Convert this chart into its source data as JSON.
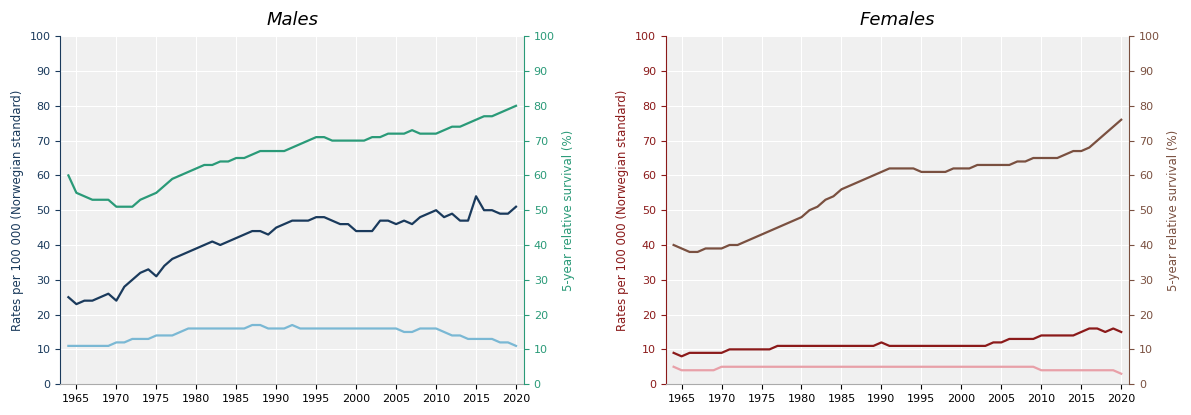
{
  "males": {
    "title": "Males",
    "years": [
      1964,
      1965,
      1966,
      1967,
      1968,
      1969,
      1970,
      1971,
      1972,
      1973,
      1974,
      1975,
      1976,
      1977,
      1978,
      1979,
      1980,
      1981,
      1982,
      1983,
      1984,
      1985,
      1986,
      1987,
      1988,
      1989,
      1990,
      1991,
      1992,
      1993,
      1994,
      1995,
      1996,
      1997,
      1998,
      1999,
      2000,
      2001,
      2002,
      2003,
      2004,
      2005,
      2006,
      2007,
      2008,
      2009,
      2010,
      2011,
      2012,
      2013,
      2014,
      2015,
      2016,
      2017,
      2018,
      2019,
      2020
    ],
    "incidence": [
      25,
      23,
      24,
      24,
      25,
      26,
      24,
      28,
      30,
      32,
      33,
      31,
      34,
      36,
      37,
      38,
      39,
      40,
      41,
      40,
      41,
      42,
      43,
      44,
      44,
      43,
      45,
      46,
      47,
      47,
      47,
      48,
      48,
      47,
      46,
      46,
      44,
      44,
      44,
      47,
      47,
      46,
      47,
      46,
      48,
      49,
      50,
      48,
      49,
      47,
      47,
      54,
      50,
      50,
      49,
      49,
      51
    ],
    "mortality": [
      11,
      11,
      11,
      11,
      11,
      11,
      12,
      12,
      13,
      13,
      13,
      14,
      14,
      14,
      15,
      16,
      16,
      16,
      16,
      16,
      16,
      16,
      16,
      17,
      17,
      16,
      16,
      16,
      17,
      16,
      16,
      16,
      16,
      16,
      16,
      16,
      16,
      16,
      16,
      16,
      16,
      16,
      15,
      15,
      16,
      16,
      16,
      15,
      14,
      14,
      13,
      13,
      13,
      13,
      12,
      12,
      11
    ],
    "survival": [
      60,
      55,
      54,
      53,
      53,
      53,
      51,
      51,
      51,
      53,
      54,
      55,
      57,
      59,
      60,
      61,
      62,
      63,
      63,
      64,
      64,
      65,
      65,
      66,
      67,
      67,
      67,
      67,
      68,
      69,
      70,
      71,
      71,
      70,
      70,
      70,
      70,
      70,
      71,
      71,
      72,
      72,
      72,
      73,
      72,
      72,
      72,
      73,
      74,
      74,
      75,
      76,
      77,
      77,
      78,
      79,
      80
    ],
    "incidence_color": "#1a3a5c",
    "mortality_color": "#7ab8d4",
    "survival_color": "#2a9a78",
    "left_ylabel": "Rates per 100 000 (Norwegian standard)",
    "right_ylabel": "5-year relative survival (%)",
    "ylim": [
      0,
      100
    ],
    "right_tick_color": "#2a9a78",
    "left_tick_color": "#1a3a5c"
  },
  "females": {
    "title": "Females",
    "years": [
      1964,
      1965,
      1966,
      1967,
      1968,
      1969,
      1970,
      1971,
      1972,
      1973,
      1974,
      1975,
      1976,
      1977,
      1978,
      1979,
      1980,
      1981,
      1982,
      1983,
      1984,
      1985,
      1986,
      1987,
      1988,
      1989,
      1990,
      1991,
      1992,
      1993,
      1994,
      1995,
      1996,
      1997,
      1998,
      1999,
      2000,
      2001,
      2002,
      2003,
      2004,
      2005,
      2006,
      2007,
      2008,
      2009,
      2010,
      2011,
      2012,
      2013,
      2014,
      2015,
      2016,
      2017,
      2018,
      2019,
      2020
    ],
    "incidence": [
      9,
      8,
      9,
      9,
      9,
      9,
      9,
      10,
      10,
      10,
      10,
      10,
      10,
      11,
      11,
      11,
      11,
      11,
      11,
      11,
      11,
      11,
      11,
      11,
      11,
      11,
      12,
      11,
      11,
      11,
      11,
      11,
      11,
      11,
      11,
      11,
      11,
      11,
      11,
      11,
      12,
      12,
      13,
      13,
      13,
      13,
      14,
      14,
      14,
      14,
      14,
      15,
      16,
      16,
      15,
      16,
      15
    ],
    "mortality": [
      5,
      4,
      4,
      4,
      4,
      4,
      5,
      5,
      5,
      5,
      5,
      5,
      5,
      5,
      5,
      5,
      5,
      5,
      5,
      5,
      5,
      5,
      5,
      5,
      5,
      5,
      5,
      5,
      5,
      5,
      5,
      5,
      5,
      5,
      5,
      5,
      5,
      5,
      5,
      5,
      5,
      5,
      5,
      5,
      5,
      5,
      4,
      4,
      4,
      4,
      4,
      4,
      4,
      4,
      4,
      4,
      3
    ],
    "survival": [
      40,
      39,
      38,
      38,
      39,
      39,
      39,
      40,
      40,
      41,
      42,
      43,
      44,
      45,
      46,
      47,
      48,
      50,
      51,
      53,
      54,
      56,
      57,
      58,
      59,
      60,
      61,
      62,
      62,
      62,
      62,
      61,
      61,
      61,
      61,
      62,
      62,
      62,
      63,
      63,
      63,
      63,
      63,
      64,
      64,
      65,
      65,
      65,
      65,
      66,
      67,
      67,
      68,
      70,
      72,
      74,
      76
    ],
    "incidence_color": "#8b1a1a",
    "mortality_color": "#e8a0a8",
    "survival_color": "#7a5040",
    "left_ylabel": "Rates per 100 000 (Norwegian standard)",
    "right_ylabel": "5-year relative survival (%)",
    "ylim": [
      0,
      100
    ],
    "right_tick_color": "#7a5040",
    "left_tick_color": "#8b1a1a"
  },
  "xticks": [
    1965,
    1970,
    1975,
    1980,
    1985,
    1990,
    1995,
    2000,
    2005,
    2010,
    2015,
    2020
  ],
  "yticks": [
    0,
    10,
    20,
    30,
    40,
    50,
    60,
    70,
    80,
    90,
    100
  ],
  "background_color": "#f0f0f0",
  "grid_color": "#ffffff",
  "fig_background": "#ffffff"
}
